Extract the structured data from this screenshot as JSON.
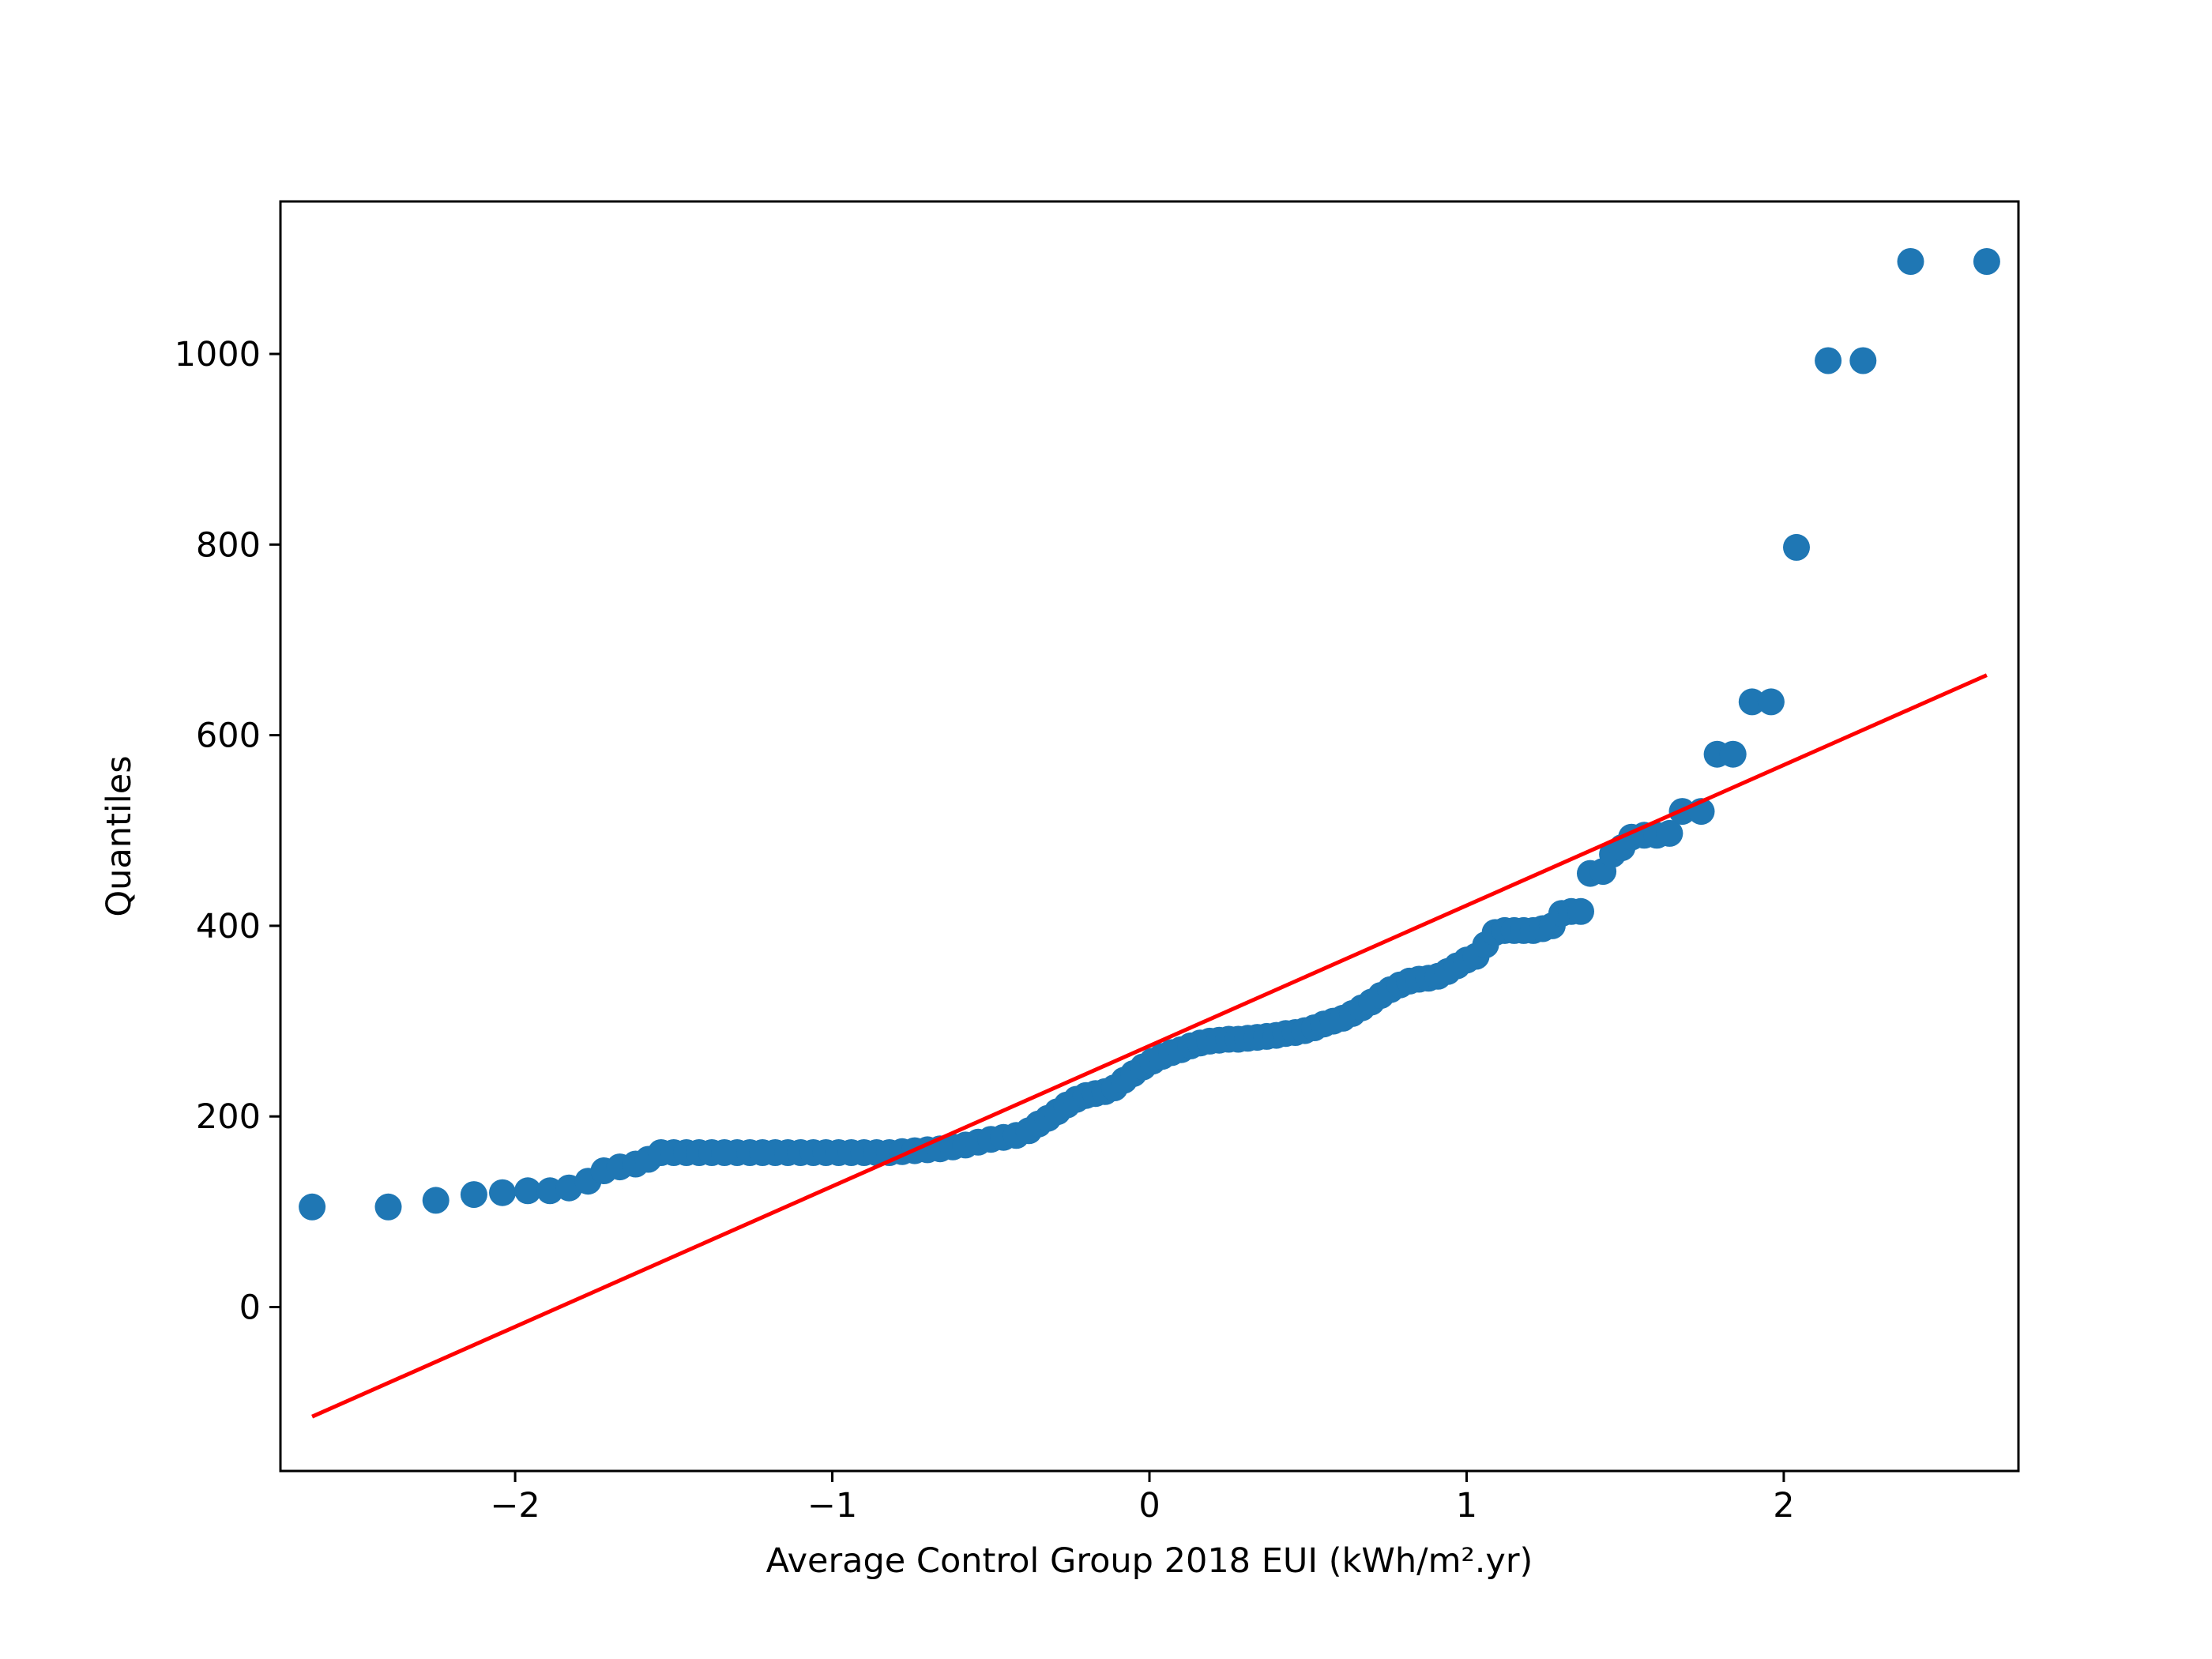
{
  "chart_data": {
    "type": "scatter",
    "title": "",
    "xlabel": "Average Control Group 2018 EUI (kWh/m².yr)",
    "ylabel": "Quantiles",
    "xlim": [
      -2.74,
      2.74
    ],
    "ylim": [
      -172,
      1160
    ],
    "x_ticks": [
      {
        "value": -2,
        "label": "−2"
      },
      {
        "value": -1,
        "label": "−1"
      },
      {
        "value": 0,
        "label": "0"
      },
      {
        "value": 1,
        "label": "1"
      },
      {
        "value": 2,
        "label": "2"
      }
    ],
    "y_ticks": [
      {
        "value": 0,
        "label": "0"
      },
      {
        "value": 200,
        "label": "200"
      },
      {
        "value": 400,
        "label": "400"
      },
      {
        "value": 600,
        "label": "600"
      },
      {
        "value": 800,
        "label": "800"
      },
      {
        "value": 1000,
        "label": "1000"
      }
    ],
    "grid": false,
    "legend": "none",
    "series": [
      {
        "kind": "points",
        "color": "#1f77b4",
        "points": [
          [
            -2.64,
            105
          ],
          [
            -2.4,
            105
          ],
          [
            -2.25,
            112
          ],
          [
            -2.13,
            118
          ],
          [
            -2.04,
            120
          ],
          [
            -1.96,
            122
          ],
          [
            -1.89,
            122
          ],
          [
            -1.83,
            125
          ],
          [
            -1.77,
            132
          ],
          [
            -1.72,
            143
          ],
          [
            -1.67,
            147
          ],
          [
            -1.62,
            150
          ],
          [
            -1.58,
            155
          ],
          [
            -1.54,
            162
          ],
          [
            -1.5,
            162
          ],
          [
            -1.46,
            162
          ],
          [
            -1.42,
            162
          ],
          [
            -1.38,
            162
          ],
          [
            -1.34,
            162
          ],
          [
            -1.3,
            162
          ],
          [
            -1.26,
            162
          ],
          [
            -1.22,
            162
          ],
          [
            -1.18,
            162
          ],
          [
            -1.14,
            162
          ],
          [
            -1.1,
            162
          ],
          [
            -1.06,
            162
          ],
          [
            -1.02,
            162
          ],
          [
            -0.98,
            162
          ],
          [
            -0.94,
            162
          ],
          [
            -0.9,
            162
          ],
          [
            -0.86,
            162
          ],
          [
            -0.82,
            162
          ],
          [
            -0.78,
            163
          ],
          [
            -0.74,
            164
          ],
          [
            -0.7,
            165
          ],
          [
            -0.66,
            166
          ],
          [
            -0.62,
            168
          ],
          [
            -0.58,
            170
          ],
          [
            -0.54,
            173
          ],
          [
            -0.5,
            176
          ],
          [
            -0.46,
            178
          ],
          [
            -0.42,
            180
          ],
          [
            -0.38,
            185
          ],
          [
            -0.35,
            192
          ],
          [
            -0.32,
            198
          ],
          [
            -0.29,
            205
          ],
          [
            -0.26,
            212
          ],
          [
            -0.23,
            218
          ],
          [
            -0.2,
            222
          ],
          [
            -0.17,
            224
          ],
          [
            -0.14,
            226
          ],
          [
            -0.11,
            230
          ],
          [
            -0.08,
            238
          ],
          [
            -0.05,
            245
          ],
          [
            -0.02,
            252
          ],
          [
            0.01,
            258
          ],
          [
            0.04,
            263
          ],
          [
            0.07,
            267
          ],
          [
            0.1,
            270
          ],
          [
            0.13,
            274
          ],
          [
            0.16,
            277
          ],
          [
            0.19,
            279
          ],
          [
            0.22,
            280
          ],
          [
            0.25,
            281
          ],
          [
            0.28,
            281
          ],
          [
            0.31,
            282
          ],
          [
            0.34,
            283
          ],
          [
            0.37,
            284
          ],
          [
            0.4,
            285
          ],
          [
            0.43,
            287
          ],
          [
            0.46,
            288
          ],
          [
            0.49,
            290
          ],
          [
            0.52,
            293
          ],
          [
            0.55,
            297
          ],
          [
            0.58,
            300
          ],
          [
            0.61,
            303
          ],
          [
            0.64,
            308
          ],
          [
            0.67,
            314
          ],
          [
            0.7,
            320
          ],
          [
            0.73,
            327
          ],
          [
            0.76,
            333
          ],
          [
            0.79,
            338
          ],
          [
            0.82,
            342
          ],
          [
            0.85,
            344
          ],
          [
            0.88,
            345
          ],
          [
            0.91,
            347
          ],
          [
            0.94,
            352
          ],
          [
            0.97,
            358
          ],
          [
            1.0,
            364
          ],
          [
            1.03,
            368
          ],
          [
            1.06,
            380
          ],
          [
            1.09,
            393
          ],
          [
            1.12,
            395
          ],
          [
            1.15,
            395
          ],
          [
            1.18,
            395
          ],
          [
            1.21,
            395
          ],
          [
            1.24,
            397
          ],
          [
            1.27,
            400
          ],
          [
            1.3,
            413
          ],
          [
            1.33,
            415
          ],
          [
            1.36,
            415
          ],
          [
            1.39,
            455
          ],
          [
            1.43,
            457
          ],
          [
            1.46,
            475
          ],
          [
            1.49,
            482
          ],
          [
            1.52,
            493
          ],
          [
            1.56,
            495
          ],
          [
            1.6,
            495
          ],
          [
            1.64,
            497
          ],
          [
            1.68,
            520
          ],
          [
            1.74,
            520
          ],
          [
            1.79,
            580
          ],
          [
            1.84,
            580
          ],
          [
            1.9,
            635
          ],
          [
            1.96,
            635
          ],
          [
            2.04,
            797
          ],
          [
            2.14,
            993
          ],
          [
            2.25,
            993
          ],
          [
            2.4,
            1097
          ],
          [
            2.64,
            1097
          ]
        ]
      },
      {
        "kind": "line",
        "color": "#ff0000",
        "points": [
          [
            -2.64,
            -115
          ],
          [
            2.64,
            663
          ]
        ]
      }
    ]
  }
}
